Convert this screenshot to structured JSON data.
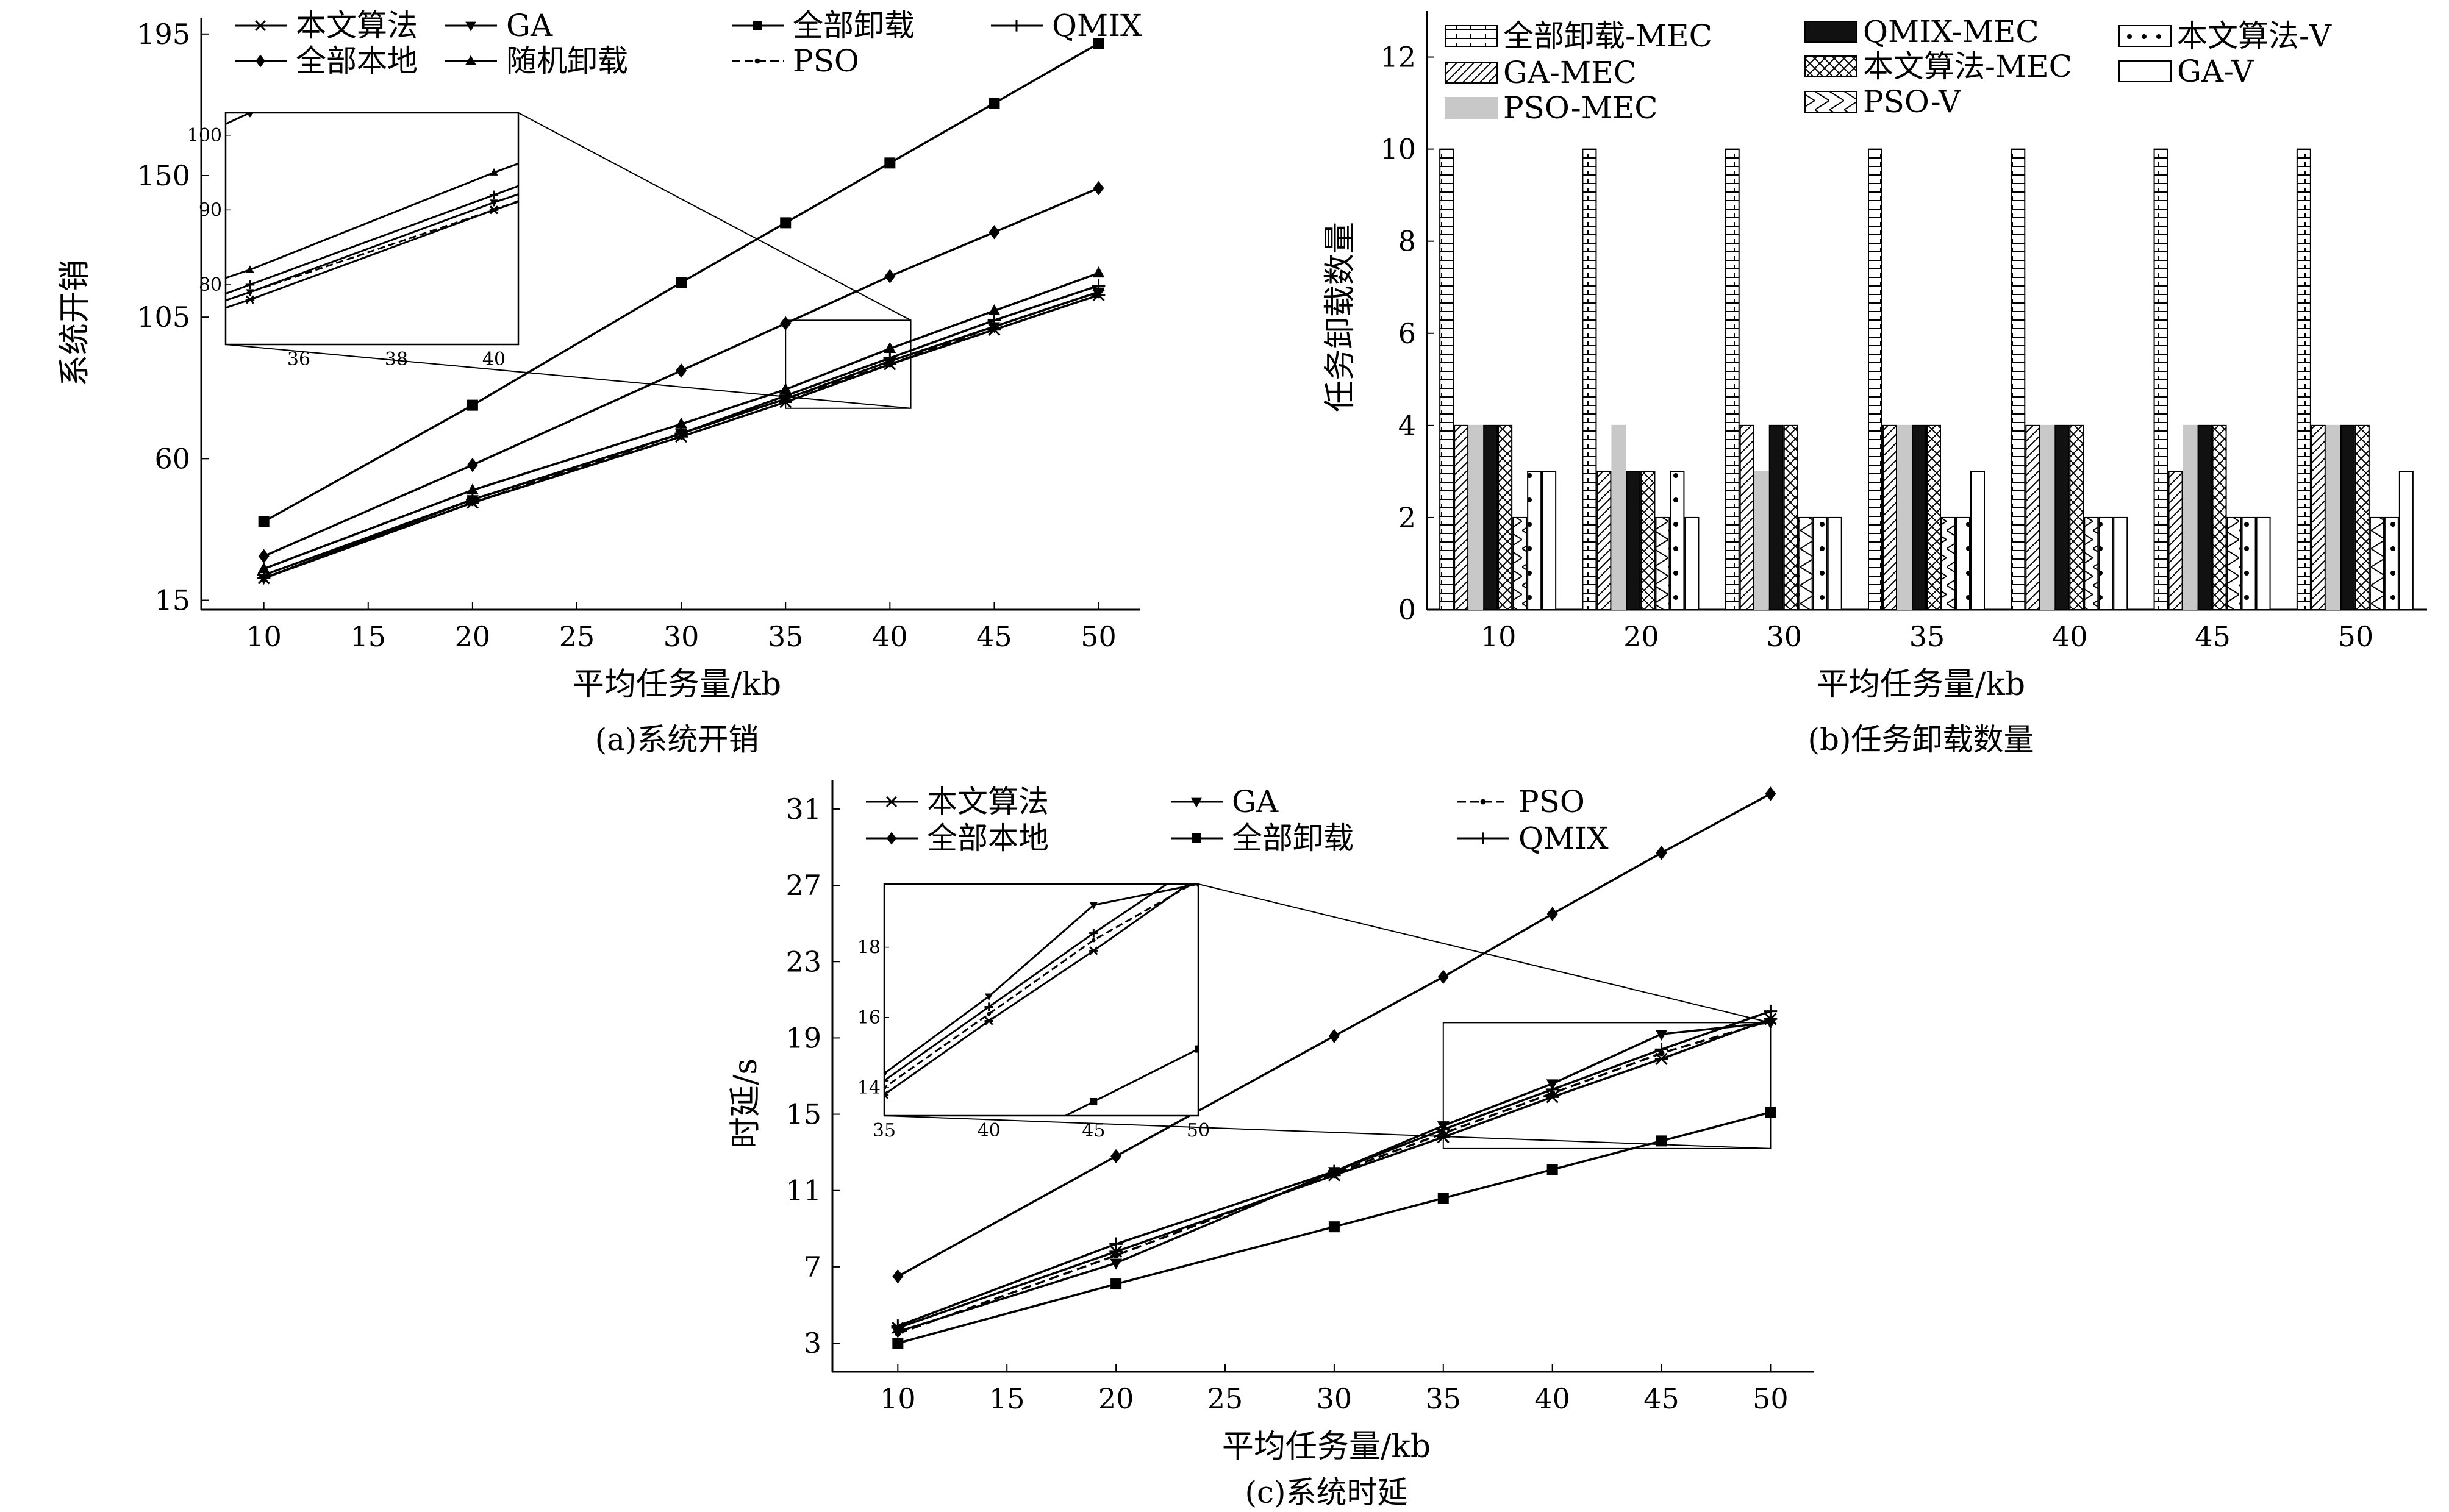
{
  "chart_data": [
    {
      "type": "line",
      "caption": "(a)系统开销",
      "xlabel": "平均任务量/kb",
      "ylabel": "系统开销",
      "xlim": [
        7,
        52
      ],
      "ylim": [
        12,
        200
      ],
      "xticks": [
        10,
        15,
        20,
        25,
        30,
        35,
        40,
        45,
        50
      ],
      "yticks": [
        15,
        60,
        105,
        150,
        195
      ],
      "x": [
        10,
        20,
        30,
        35,
        40,
        45,
        50
      ],
      "series": [
        {
          "name": "本文算法",
          "marker": "star",
          "dash": false,
          "values": [
            22,
            46,
            67,
            78,
            90,
            101,
            112
          ]
        },
        {
          "name": "全部本地",
          "marker": "diamond",
          "dash": false,
          "values": [
            29,
            58,
            88,
            103,
            118,
            132,
            146
          ]
        },
        {
          "name": "GA",
          "marker": "tri-down",
          "dash": false,
          "values": [
            22,
            47,
            68,
            79,
            91,
            102,
            113
          ]
        },
        {
          "name": "随机卸载",
          "marker": "tri-up",
          "dash": false,
          "values": [
            25,
            50,
            71,
            82,
            95,
            107,
            119
          ]
        },
        {
          "name": "全部卸载",
          "marker": "square",
          "dash": false,
          "values": [
            40,
            77,
            116,
            135,
            154,
            173,
            192
          ]
        },
        {
          "name": "PSO",
          "marker": "dot",
          "dash": true,
          "values": [
            22,
            46,
            68,
            79,
            90,
            102,
            113
          ]
        },
        {
          "name": "QMIX",
          "marker": "plus",
          "dash": false,
          "values": [
            23,
            47,
            68,
            80,
            92,
            104,
            115
          ]
        }
      ],
      "inset": {
        "xlim": [
          34.5,
          40.5
        ],
        "ylim": [
          72,
          103
        ],
        "xticks": [
          36,
          38,
          40
        ],
        "yticks": [
          80,
          90,
          100
        ],
        "source_box": {
          "x": [
            35,
            41
          ],
          "y": [
            76,
            104
          ]
        }
      }
    },
    {
      "type": "bar",
      "caption": "(b)任务卸载数量",
      "xlabel": "平均任务量/kb",
      "ylabel": "任务卸载数量",
      "ylim": [
        0,
        13
      ],
      "yticks": [
        0,
        2,
        4,
        6,
        8,
        10,
        12
      ],
      "categories": [
        "10",
        "20",
        "30",
        "35",
        "40",
        "45",
        "50"
      ],
      "series": [
        {
          "name": "全部卸载-MEC",
          "pattern": "hbrick",
          "values": [
            10,
            10,
            10,
            10,
            10,
            10,
            10
          ]
        },
        {
          "name": "GA-MEC",
          "pattern": "diag",
          "values": [
            4,
            3,
            4,
            4,
            4,
            3,
            4
          ]
        },
        {
          "name": "PSO-MEC",
          "pattern": "gray",
          "values": [
            4,
            4,
            3,
            4,
            4,
            4,
            4
          ]
        },
        {
          "name": "QMIX-MEC",
          "pattern": "black",
          "values": [
            4,
            3,
            4,
            4,
            4,
            4,
            4
          ]
        },
        {
          "name": "本文算法-MEC",
          "pattern": "cross",
          "values": [
            4,
            3,
            4,
            4,
            4,
            4,
            4
          ]
        },
        {
          "name": "PSO-V",
          "pattern": "zigzag",
          "values": [
            2,
            2,
            2,
            2,
            2,
            2,
            2
          ]
        },
        {
          "name": "本文算法-V",
          "pattern": "dots",
          "values": [
            3,
            3,
            2,
            2,
            2,
            2,
            2
          ]
        },
        {
          "name": "GA-V",
          "pattern": "white",
          "values": [
            3,
            2,
            2,
            3,
            2,
            2,
            3
          ]
        }
      ]
    },
    {
      "type": "line",
      "caption": "(c)系统时延",
      "xlabel": "平均任务量/kb",
      "ylabel": "时延/s",
      "xlim": [
        7,
        52
      ],
      "ylim": [
        1.5,
        32.5
      ],
      "xticks": [
        10,
        15,
        20,
        25,
        30,
        35,
        40,
        45,
        50
      ],
      "yticks": [
        3,
        7,
        11,
        15,
        19,
        23,
        27,
        31
      ],
      "x": [
        10,
        20,
        30,
        35,
        40,
        45,
        50
      ],
      "series": [
        {
          "name": "本文算法",
          "marker": "star",
          "dash": false,
          "values": [
            3.8,
            7.8,
            11.8,
            13.8,
            15.9,
            17.9,
            20.0
          ]
        },
        {
          "name": "全部本地",
          "marker": "diamond",
          "dash": false,
          "values": [
            6.5,
            12.8,
            19.1,
            22.2,
            25.5,
            28.7,
            31.8
          ]
        },
        {
          "name": "GA",
          "marker": "tri-down",
          "dash": false,
          "values": [
            3.6,
            7.2,
            12.0,
            14.4,
            16.6,
            19.2,
            19.8
          ]
        },
        {
          "name": "全部卸载",
          "marker": "square",
          "dash": false,
          "values": [
            3.0,
            6.1,
            9.1,
            10.6,
            12.1,
            13.6,
            15.1
          ]
        },
        {
          "name": "PSO",
          "marker": "dot",
          "dash": true,
          "values": [
            3.5,
            7.6,
            11.9,
            14.0,
            16.1,
            18.2,
            19.9
          ]
        },
        {
          "name": "QMIX",
          "marker": "plus",
          "dash": false,
          "values": [
            3.9,
            8.2,
            12.0,
            14.2,
            16.3,
            18.4,
            20.4
          ]
        }
      ],
      "inset": {
        "xlim": [
          35,
          50
        ],
        "ylim": [
          13.2,
          19.8
        ],
        "xticks": [
          35,
          40,
          45,
          50
        ],
        "yticks": [
          14,
          16,
          18
        ],
        "source_box": {
          "x": [
            35,
            50
          ],
          "y": [
            13.2,
            19.8
          ]
        }
      }
    }
  ]
}
